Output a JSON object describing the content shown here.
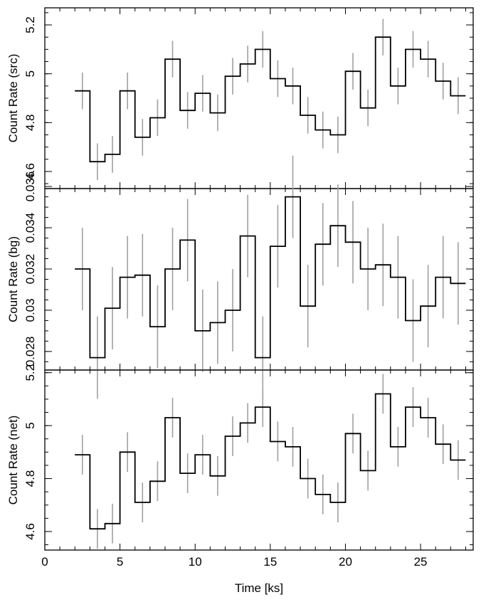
{
  "chart_data": [
    {
      "type": "line",
      "panel": "src",
      "ylabel": "Count Rate (src)",
      "xlabel": "",
      "xlim": [
        0,
        28.5
      ],
      "ylim": [
        4.53,
        5.27
      ],
      "yticks": [
        4.6,
        4.8,
        5,
        5.2
      ],
      "ytick_labels": [
        "4.6",
        "4.8",
        "5",
        "5.2"
      ],
      "y_minor": 0.05,
      "show_xtick_labels": false,
      "bin_edges": [
        2,
        3,
        4,
        5,
        6,
        7,
        8,
        9,
        10,
        11,
        12,
        13,
        14,
        15,
        16,
        17,
        18,
        19,
        20,
        21,
        22,
        23,
        24,
        25,
        26,
        27,
        28
      ],
      "values": [
        4.93,
        4.64,
        4.67,
        4.93,
        4.74,
        4.82,
        5.06,
        4.85,
        4.92,
        4.84,
        4.99,
        5.04,
        5.1,
        4.98,
        4.95,
        4.83,
        4.77,
        4.75,
        5.01,
        4.86,
        5.15,
        4.95,
        5.1,
        5.06,
        4.97,
        4.91
      ],
      "errors": [
        0.075,
        0.075,
        0.075,
        0.075,
        0.075,
        0.075,
        0.075,
        0.075,
        0.075,
        0.075,
        0.075,
        0.075,
        0.075,
        0.075,
        0.075,
        0.075,
        0.075,
        0.075,
        0.075,
        0.075,
        0.075,
        0.075,
        0.075,
        0.075,
        0.075,
        0.075
      ]
    },
    {
      "type": "line",
      "panel": "bg",
      "ylabel": "Count Rate (bg)",
      "xlabel": "",
      "xlim": [
        0,
        28.5
      ],
      "ylim": [
        0.0271,
        0.0359
      ],
      "yticks": [
        0.028,
        0.03,
        0.032,
        0.034,
        0.036
      ],
      "ytick_labels": [
        "0.028",
        "0.03",
        "0.032",
        "0.034",
        "0.036"
      ],
      "y_minor": 0.0005,
      "show_xtick_labels": false,
      "bin_edges": [
        2,
        3,
        4,
        5,
        6,
        7,
        8,
        9,
        10,
        11,
        12,
        13,
        14,
        15,
        16,
        17,
        18,
        19,
        20,
        21,
        22,
        23,
        24,
        25,
        26,
        27,
        28
      ],
      "values": [
        0.032,
        0.0277,
        0.0301,
        0.0316,
        0.0317,
        0.0292,
        0.032,
        0.0334,
        0.029,
        0.0294,
        0.03,
        0.0336,
        0.0277,
        0.0331,
        0.0355,
        0.0302,
        0.0332,
        0.0341,
        0.0333,
        0.032,
        0.0322,
        0.0316,
        0.0295,
        0.0302,
        0.0316,
        0.0313
      ],
      "errors": [
        0.002,
        0.002,
        0.002,
        0.002,
        0.002,
        0.002,
        0.002,
        0.002,
        0.002,
        0.002,
        0.002,
        0.002,
        0.002,
        0.002,
        0.002,
        0.002,
        0.002,
        0.002,
        0.002,
        0.002,
        0.002,
        0.002,
        0.002,
        0.002,
        0.002,
        0.002
      ]
    },
    {
      "type": "line",
      "panel": "net",
      "ylabel": "Count Rate (net)",
      "xlabel": "Time [ks]",
      "xlim": [
        0,
        28.5
      ],
      "ylim": [
        4.53,
        5.21
      ],
      "yticks": [
        4.6,
        4.8,
        5,
        5.2
      ],
      "ytick_labels": [
        "4.6",
        "4.8",
        "5",
        "5.2"
      ],
      "y_minor": 0.05,
      "show_xtick_labels": true,
      "xticks": [
        0,
        5,
        10,
        15,
        20,
        25
      ],
      "xtick_labels": [
        "0",
        "5",
        "10",
        "15",
        "20",
        "25"
      ],
      "x_minor": 1,
      "bin_edges": [
        2,
        3,
        4,
        5,
        6,
        7,
        8,
        9,
        10,
        11,
        12,
        13,
        14,
        15,
        16,
        17,
        18,
        19,
        20,
        21,
        22,
        23,
        24,
        25,
        26,
        27,
        28
      ],
      "values": [
        4.89,
        4.61,
        4.63,
        4.9,
        4.71,
        4.79,
        5.03,
        4.82,
        4.89,
        4.81,
        4.96,
        5.01,
        5.07,
        4.94,
        4.92,
        4.8,
        4.74,
        4.71,
        4.97,
        4.83,
        5.12,
        4.92,
        5.07,
        5.03,
        4.93,
        4.87
      ],
      "errors": [
        0.075,
        0.075,
        0.075,
        0.075,
        0.075,
        0.075,
        0.075,
        0.075,
        0.075,
        0.075,
        0.075,
        0.075,
        0.075,
        0.075,
        0.075,
        0.075,
        0.075,
        0.075,
        0.075,
        0.075,
        0.075,
        0.075,
        0.075,
        0.075,
        0.075,
        0.075
      ]
    }
  ],
  "style": {
    "step_color": "#000000",
    "error_color": "#a0a0a0",
    "axis_color": "#000000"
  }
}
